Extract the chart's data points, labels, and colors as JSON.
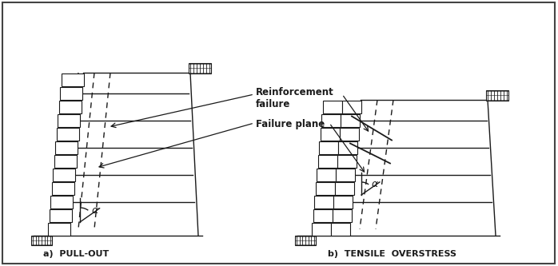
{
  "fig_width": 6.98,
  "fig_height": 3.33,
  "dpi": 100,
  "line_color": "#1a1a1a",
  "label_a": "a)  PULL-OUT",
  "label_b": "b)  TENSILE  OVERSTRESS",
  "label_rf": "Reinforcement\nfailure",
  "label_fp": "Failure plane",
  "label_alpha": "a"
}
